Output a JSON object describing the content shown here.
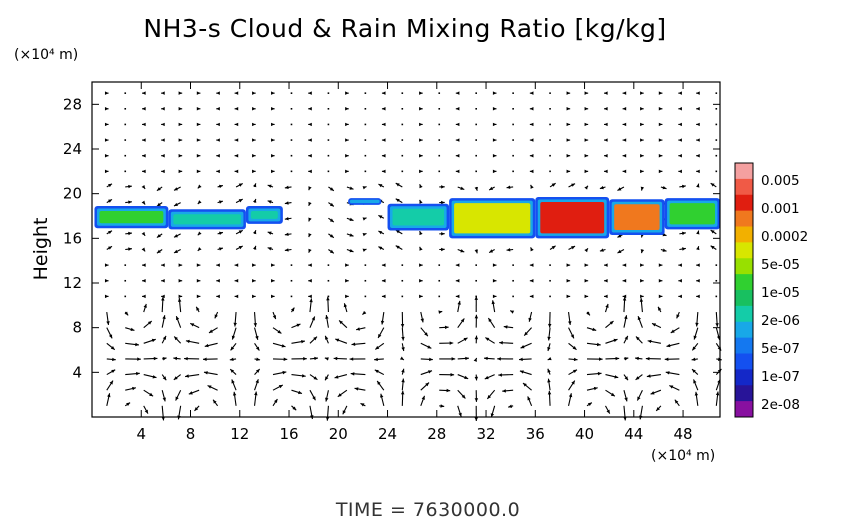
{
  "chart_data": {
    "type": "heatmap",
    "title": "NH3-s Cloud & Rain Mixing Ratio [kg/kg]",
    "ylabel": "Height",
    "xlabel": "",
    "x_unit": "(×10⁴ m)",
    "y_unit": "(×10⁴ m)",
    "xlim": [
      0,
      51
    ],
    "ylim": [
      0,
      30
    ],
    "x_ticks": [
      "4",
      "8",
      "12",
      "16",
      "20",
      "24",
      "28",
      "32",
      "36",
      "40",
      "44",
      "48"
    ],
    "y_ticks": [
      "4",
      "8",
      "12",
      "16",
      "20",
      "24",
      "28"
    ],
    "colorbar": {
      "labels": [
        "0.005",
        "0.001",
        "0.0002",
        "5e-05",
        "1e-05",
        "2e-06",
        "5e-07",
        "1e-07",
        "2e-08"
      ],
      "colors": [
        "#f4a0a0",
        "#f05a46",
        "#e01e10",
        "#f0781e",
        "#f2b000",
        "#d8e600",
        "#98e000",
        "#30d030",
        "#18c060",
        "#14cca8",
        "#18a8e8",
        "#1478f0",
        "#1450f0",
        "#1428c8",
        "#281498",
        "#8810a0"
      ]
    },
    "regions": [
      {
        "x_start": 0.2,
        "x_end": 6.2,
        "y_bottom": 16.9,
        "y_top": 18.9,
        "level": "1e-05"
      },
      {
        "x_start": 6.2,
        "x_end": 12.5,
        "y_bottom": 16.8,
        "y_top": 18.6,
        "level": "2e-06"
      },
      {
        "x_start": 12.5,
        "x_end": 15.5,
        "y_bottom": 17.3,
        "y_top": 18.9,
        "level": "2e-06"
      },
      {
        "x_start": 20.8,
        "x_end": 23.5,
        "y_bottom": 19.0,
        "y_top": 19.6,
        "level": "1e-07"
      },
      {
        "x_start": 24.0,
        "x_end": 29.0,
        "y_bottom": 16.7,
        "y_top": 19.1,
        "level": "2e-06"
      },
      {
        "x_start": 29.0,
        "x_end": 36.0,
        "y_bottom": 16.0,
        "y_top": 19.6,
        "level": "5e-05"
      },
      {
        "x_start": 36.0,
        "x_end": 42.0,
        "y_bottom": 16.0,
        "y_top": 19.7,
        "level": "0.001"
      },
      {
        "x_start": 42.0,
        "x_end": 46.5,
        "y_bottom": 16.3,
        "y_top": 19.5,
        "level": "0.0002"
      },
      {
        "x_start": 46.5,
        "x_end": 51.0,
        "y_bottom": 16.8,
        "y_top": 19.6,
        "level": "1e-05"
      }
    ],
    "vector_field": "wind vectors (arrows) across the domain; circulation cells below 10×10⁴ m",
    "footer": "TIME = 7630000.0"
  }
}
